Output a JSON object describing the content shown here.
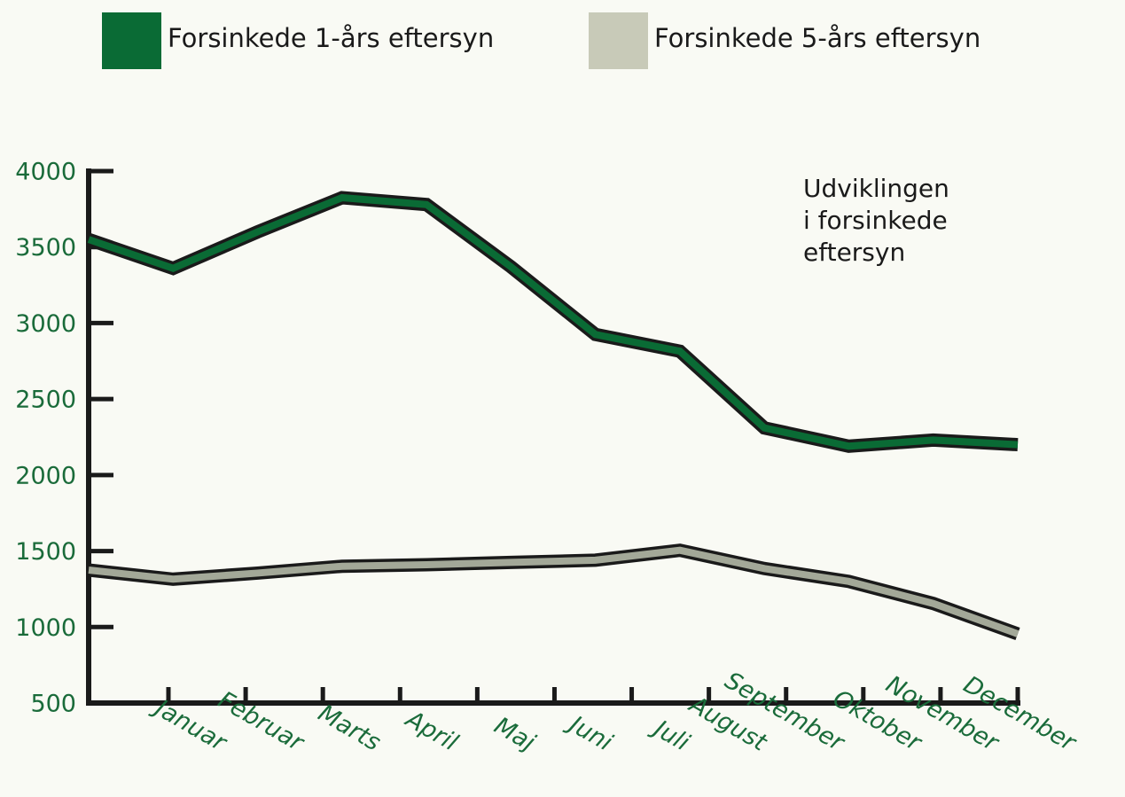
{
  "chart_data": {
    "type": "line",
    "annotation": [
      "Udviklingen",
      "i forsinkede",
      "eftersyn"
    ],
    "categories": [
      "Januar",
      "Februar",
      "Marts",
      "April",
      "Maj",
      "Juni",
      "Juli",
      "August",
      "September",
      "Oktober",
      "November",
      "December"
    ],
    "series": [
      {
        "name": "Forsinkede 1-års eftersyn",
        "color": "#0a6b35",
        "values": [
          3550,
          3360,
          3600,
          3825,
          3780,
          3370,
          2925,
          2815,
          2310,
          2190,
          2230,
          2200
        ]
      },
      {
        "name": "Forsinkede 5-års eftersyn",
        "color": "#a3a898",
        "legend_color": "#c8cab8",
        "values": [
          1375,
          1315,
          1355,
          1400,
          1410,
          1425,
          1440,
          1505,
          1385,
          1300,
          1155,
          955
        ]
      }
    ],
    "ylim": [
      500,
      4000
    ],
    "yticks": [
      500,
      1000,
      1500,
      2000,
      2500,
      3000,
      3500,
      4000
    ]
  }
}
